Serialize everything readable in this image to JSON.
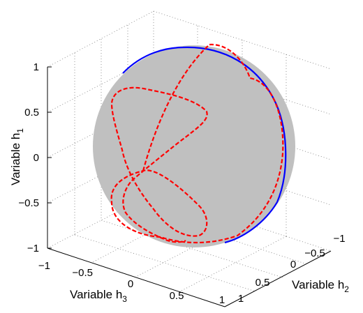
{
  "chart_data": {
    "type": "3d-line",
    "xlabel": {
      "text": "Variable h",
      "sub": "3"
    },
    "ylabel": {
      "text": "Variable h",
      "sub": "2"
    },
    "zlabel": {
      "text": "Variable h",
      "sub": "1"
    },
    "xlim": [
      -1,
      1
    ],
    "ylim": [
      -1,
      1
    ],
    "zlim": [
      -1,
      1
    ],
    "x_ticks": [
      "−1",
      "−0.5",
      "0",
      "0.5",
      "1"
    ],
    "y_ticks": [
      "−1",
      "−0.5",
      "0",
      "0.5",
      "1"
    ],
    "z_ticks": [
      "−1",
      "−0.5",
      "0",
      "0.5",
      "1"
    ],
    "grid": true,
    "surface": {
      "shape": "unit sphere",
      "color": "#c0c0c0"
    },
    "series": [
      {
        "style": "solid",
        "color": "#0000ff",
        "shape": "great circle on unit sphere"
      },
      {
        "style": "dashed",
        "color": "#ff0000",
        "shape": "figure-eight closed curve on unit sphere"
      }
    ]
  }
}
